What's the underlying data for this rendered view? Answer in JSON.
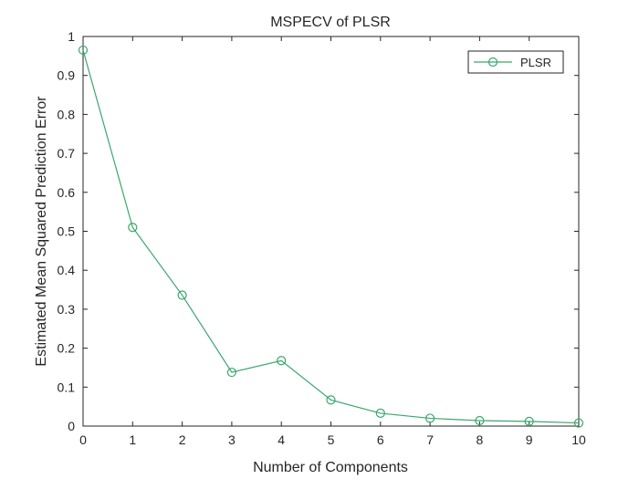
{
  "chart_data": {
    "type": "line",
    "title": "MSPECV of PLSR",
    "xlabel": "Number of Components",
    "ylabel": "Estimated Mean Squared Prediction Error",
    "xlim": [
      0,
      10
    ],
    "ylim": [
      0,
      1
    ],
    "x_ticks": [
      "0",
      "1",
      "2",
      "3",
      "4",
      "5",
      "6",
      "7",
      "8",
      "9",
      "10"
    ],
    "y_ticks": [
      "0",
      "0.1",
      "0.2",
      "0.3",
      "0.4",
      "0.5",
      "0.6",
      "0.7",
      "0.8",
      "0.9",
      "1"
    ],
    "grid": false,
    "legend_position": "top-right",
    "series": [
      {
        "name": "PLSR",
        "color": "#3aa76d",
        "marker": "circle",
        "x": [
          0,
          1,
          2,
          3,
          4,
          5,
          6,
          7,
          8,
          9,
          10
        ],
        "y": [
          0.965,
          0.51,
          0.336,
          0.138,
          0.168,
          0.067,
          0.033,
          0.02,
          0.014,
          0.012,
          0.008
        ]
      }
    ]
  }
}
